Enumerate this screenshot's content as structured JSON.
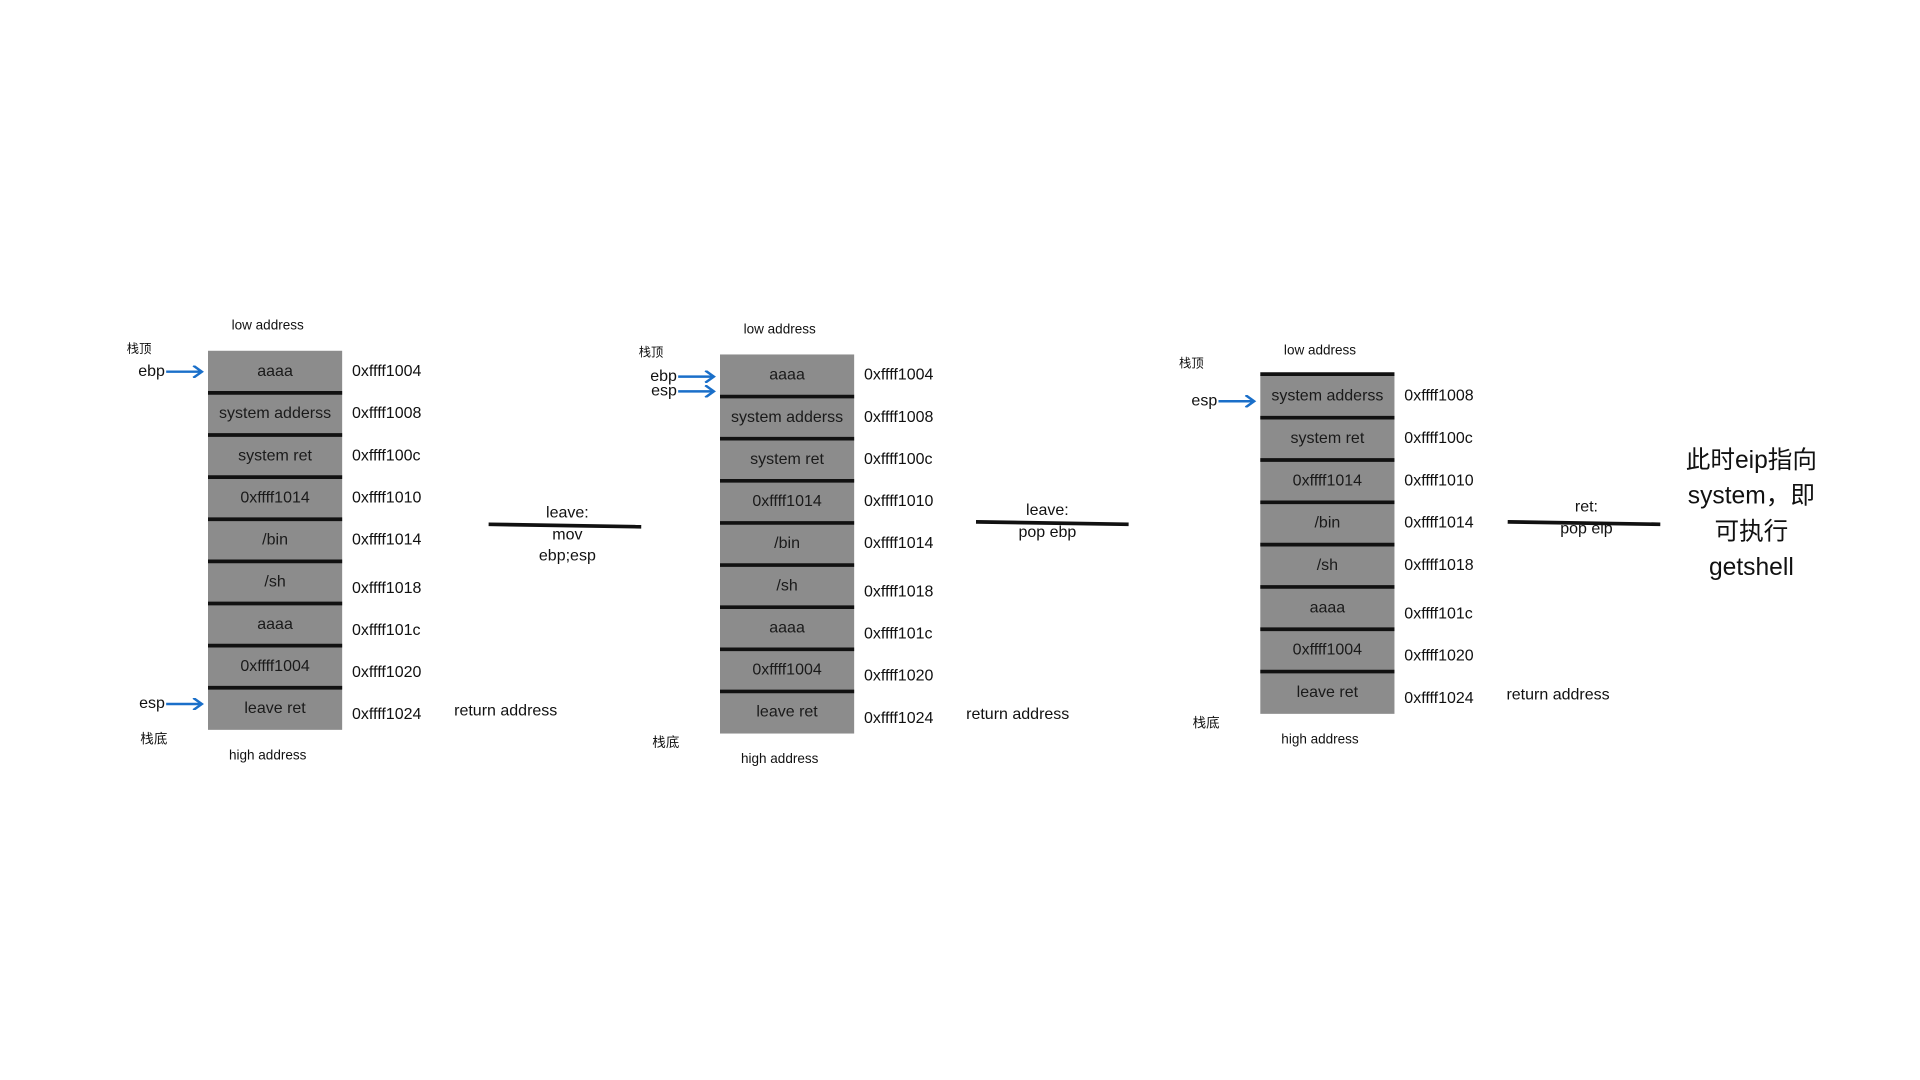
{
  "stacks": [
    {
      "low_label": "low address",
      "high_label": "high address",
      "top_label": "栈顶",
      "bottom_label": "栈底",
      "cells": [
        "aaaa",
        "system adderss",
        "system ret",
        "0xffff1014",
        "/bin",
        "/sh",
        "aaaa",
        "0xffff1004",
        "leave ret"
      ],
      "addresses": [
        "0xffff1004",
        "0xffff1008",
        "0xffff100c",
        "0xffff1010",
        "0xffff1014",
        "0xffff1018",
        "0xffff101c",
        "0xffff1020",
        "0xffff1024"
      ],
      "pointers": [
        "ebp",
        "esp"
      ],
      "return_label": "return address"
    },
    {
      "low_label": "low address",
      "high_label": "high address",
      "top_label": "栈顶",
      "bottom_label": "栈底",
      "cells": [
        "aaaa",
        "system adderss",
        "system ret",
        "0xffff1014",
        "/bin",
        "/sh",
        "aaaa",
        "0xffff1004",
        "leave ret"
      ],
      "addresses": [
        "0xffff1004",
        "0xffff1008",
        "0xffff100c",
        "0xffff1010",
        "0xffff1014",
        "0xffff1018",
        "0xffff101c",
        "0xffff1020",
        "0xffff1024"
      ],
      "pointers": [
        "ebp",
        "esp"
      ],
      "return_label": "return address"
    },
    {
      "low_label": "low address",
      "high_label": "high address",
      "top_label": "栈顶",
      "bottom_label": "栈底",
      "cells": [
        "system adderss",
        "system ret",
        "0xffff1014",
        "/bin",
        "/sh",
        "aaaa",
        "0xffff1004",
        "leave ret"
      ],
      "addresses": [
        "0xffff1008",
        "0xffff100c",
        "0xffff1010",
        "0xffff1014",
        "0xffff1018",
        "0xffff101c",
        "0xffff1020",
        "0xffff1024"
      ],
      "pointers": [
        "esp"
      ],
      "return_label": "return address"
    }
  ],
  "transitions": [
    {
      "lines": [
        "leave:",
        "mov",
        "ebp;esp"
      ]
    },
    {
      "lines": [
        "leave:",
        "pop ebp"
      ]
    },
    {
      "lines": [
        "ret:",
        "pop eip"
      ]
    }
  ],
  "note": [
    "此时eip指向",
    "system，即",
    "可执行",
    "getshell"
  ]
}
